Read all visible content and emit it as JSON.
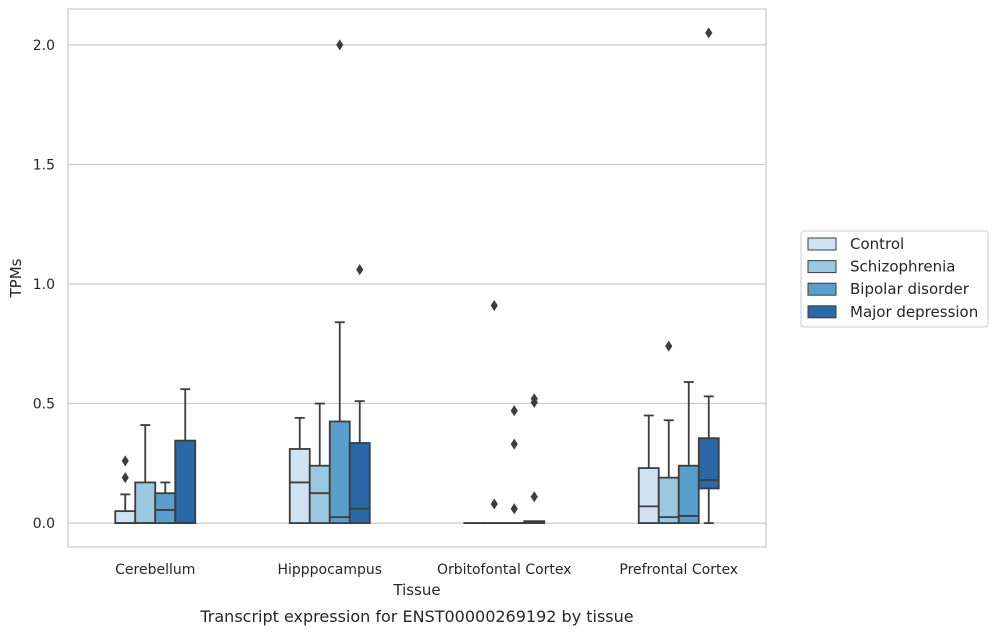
{
  "chart_data": {
    "type": "box",
    "caption": "Transcript expression for ENST00000269192 by tissue",
    "xlabel": "Tissue",
    "ylabel": "TPMs",
    "ylim": [
      -0.1,
      2.15
    ],
    "yticks": [
      0.0,
      0.5,
      1.0,
      1.5,
      2.0
    ],
    "ytick_labels": [
      "0.0",
      "0.5",
      "1.0",
      "1.5",
      "2.0"
    ],
    "grid": "horizontal",
    "legend_position": "right",
    "categories": [
      "Cerebellum",
      "Hipppocampus",
      "Orbitofontal Cortex",
      "Prefrontal Cortex"
    ],
    "series": [
      {
        "name": "Control",
        "color": "#d0e1f2",
        "boxes": [
          {
            "whisker_low": 0.0,
            "q1": 0.0,
            "median": 0.0,
            "q3": 0.05,
            "whisker_high": 0.12,
            "outliers": [
              0.19,
              0.26
            ]
          },
          {
            "whisker_low": 0.0,
            "q1": 0.0,
            "median": 0.17,
            "q3": 0.31,
            "whisker_high": 0.44,
            "outliers": []
          },
          {
            "whisker_low": 0.0,
            "q1": 0.0,
            "median": 0.0,
            "q3": 0.0,
            "whisker_high": 0.0,
            "outliers": []
          },
          {
            "whisker_low": 0.0,
            "q1": 0.0,
            "median": 0.07,
            "q3": 0.23,
            "whisker_high": 0.45,
            "outliers": []
          }
        ]
      },
      {
        "name": "Schizophrenia",
        "color": "#9ac8e0",
        "boxes": [
          {
            "whisker_low": 0.0,
            "q1": 0.0,
            "median": 0.0,
            "q3": 0.17,
            "whisker_high": 0.41,
            "outliers": []
          },
          {
            "whisker_low": 0.0,
            "q1": 0.0,
            "median": 0.125,
            "q3": 0.24,
            "whisker_high": 0.5,
            "outliers": []
          },
          {
            "whisker_low": 0.0,
            "q1": 0.0,
            "median": 0.0,
            "q3": 0.0,
            "whisker_high": 0.0,
            "outliers": [
              0.08,
              0.91
            ]
          },
          {
            "whisker_low": 0.0,
            "q1": 0.0,
            "median": 0.025,
            "q3": 0.19,
            "whisker_high": 0.43,
            "outliers": [
              0.74
            ]
          }
        ]
      },
      {
        "name": "Bipolar disorder",
        "color": "#5a9fcc",
        "boxes": [
          {
            "whisker_low": 0.0,
            "q1": 0.0,
            "median": 0.055,
            "q3": 0.125,
            "whisker_high": 0.17,
            "outliers": []
          },
          {
            "whisker_low": 0.0,
            "q1": 0.0,
            "median": 0.025,
            "q3": 0.425,
            "whisker_high": 0.84,
            "outliers": [
              2.0
            ]
          },
          {
            "whisker_low": 0.0,
            "q1": 0.0,
            "median": 0.0,
            "q3": 0.0,
            "whisker_high": 0.0,
            "outliers": [
              0.06,
              0.33,
              0.47
            ]
          },
          {
            "whisker_low": 0.0,
            "q1": 0.0,
            "median": 0.03,
            "q3": 0.24,
            "whisker_high": 0.59,
            "outliers": []
          }
        ]
      },
      {
        "name": "Major depression",
        "color": "#2a68a8",
        "boxes": [
          {
            "whisker_low": 0.0,
            "q1": 0.0,
            "median": 0.0,
            "q3": 0.345,
            "whisker_high": 0.56,
            "outliers": []
          },
          {
            "whisker_low": 0.0,
            "q1": 0.0,
            "median": 0.06,
            "q3": 0.335,
            "whisker_high": 0.51,
            "outliers": [
              1.06
            ]
          },
          {
            "whisker_low": 0.0,
            "q1": 0.0,
            "median": 0.0,
            "q3": 0.008,
            "whisker_high": 0.008,
            "outliers": [
              0.11,
              0.505,
              0.52
            ]
          },
          {
            "whisker_low": 0.0,
            "q1": 0.145,
            "median": 0.18,
            "q3": 0.355,
            "whisker_high": 0.53,
            "outliers": [
              2.05
            ]
          }
        ]
      }
    ]
  }
}
